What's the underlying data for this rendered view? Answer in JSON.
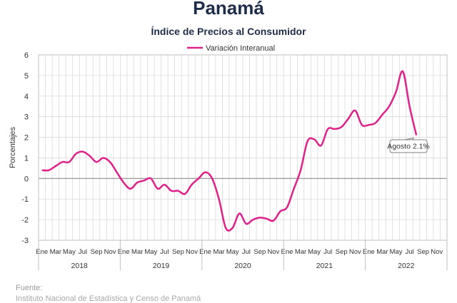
{
  "header": {
    "title": "Panamá",
    "subtitle": "Índice de Precios al Consumidor"
  },
  "footer": {
    "source_label": "Fuente:",
    "source_text": "Instituto Nacional de Estadística y Censo de Panamá"
  },
  "chart_data": {
    "type": "line",
    "ylabel": "Porcentajes",
    "ylim": [
      -3,
      6
    ],
    "yticks": [
      "6",
      "5",
      "4",
      "3",
      "2",
      "1",
      "0",
      "-1",
      "-2",
      "-3"
    ],
    "grid": true,
    "legend_position": "top-center",
    "month_ticks": [
      "Ene",
      "Mar",
      "May",
      "Jul",
      "Sep",
      "Nov"
    ],
    "years": [
      "2018",
      "2019",
      "2020",
      "2021",
      "2022"
    ],
    "series": [
      {
        "name": "Variación Interanual",
        "color": "#e0218a",
        "x": [
          "2018-01",
          "2018-02",
          "2018-03",
          "2018-04",
          "2018-05",
          "2018-06",
          "2018-07",
          "2018-08",
          "2018-09",
          "2018-10",
          "2018-11",
          "2018-12",
          "2019-01",
          "2019-02",
          "2019-03",
          "2019-04",
          "2019-05",
          "2019-06",
          "2019-07",
          "2019-08",
          "2019-09",
          "2019-10",
          "2019-11",
          "2019-12",
          "2020-01",
          "2020-02",
          "2020-03",
          "2020-04",
          "2020-05",
          "2020-06",
          "2020-07",
          "2020-08",
          "2020-09",
          "2020-10",
          "2020-11",
          "2020-12",
          "2021-01",
          "2021-02",
          "2021-03",
          "2021-04",
          "2021-05",
          "2021-06",
          "2021-07",
          "2021-08",
          "2021-09",
          "2021-10",
          "2021-11",
          "2021-12",
          "2022-01",
          "2022-02",
          "2022-03",
          "2022-04",
          "2022-05",
          "2022-06",
          "2022-07",
          "2022-08"
        ],
        "values": [
          0.4,
          0.4,
          0.6,
          0.8,
          0.8,
          1.2,
          1.3,
          1.1,
          0.8,
          1.0,
          0.8,
          0.3,
          -0.2,
          -0.5,
          -0.2,
          -0.1,
          0.0,
          -0.5,
          -0.3,
          -0.6,
          -0.6,
          -0.75,
          -0.3,
          0.0,
          0.3,
          0.0,
          -1.0,
          -2.4,
          -2.4,
          -1.7,
          -2.2,
          -2.0,
          -1.9,
          -1.95,
          -2.05,
          -1.6,
          -1.4,
          -0.5,
          0.4,
          1.8,
          1.9,
          1.6,
          2.4,
          2.4,
          2.5,
          2.9,
          3.3,
          2.6,
          2.6,
          2.7,
          3.1,
          3.5,
          4.2,
          5.2,
          3.5,
          2.1
        ]
      }
    ],
    "annotations": [
      {
        "label": "Agosto 2.1%",
        "x": "2022-08",
        "y": 2.1
      }
    ]
  }
}
